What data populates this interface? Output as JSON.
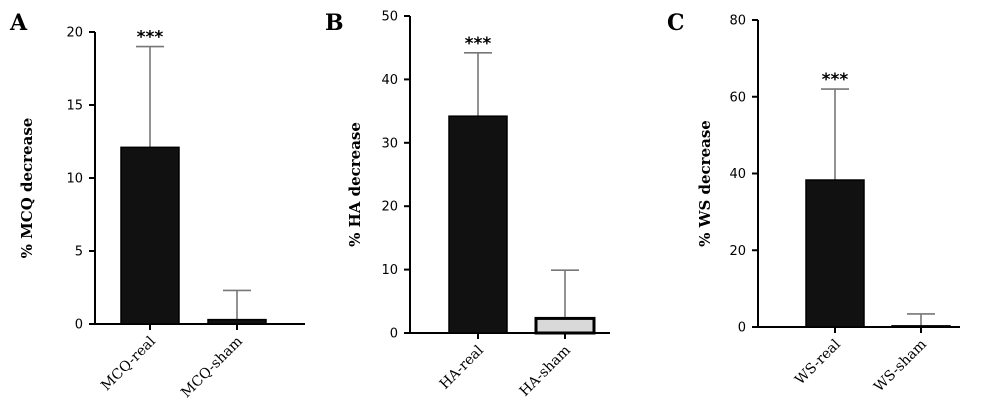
{
  "chart_data": [
    {
      "type": "bar",
      "panel_label": "A",
      "ylabel": "% MCQ decrease",
      "categories": [
        "MCQ-real",
        "MCQ-sham"
      ],
      "values": [
        12.1,
        0.3
      ],
      "errors": [
        6.9,
        2.0
      ],
      "yticks": [
        0,
        5,
        10,
        15,
        20
      ],
      "ylim": [
        0,
        20
      ],
      "bar_colors": [
        "#111111",
        "#111111"
      ],
      "annotations": [
        {
          "category": "MCQ-real",
          "text": "***"
        }
      ]
    },
    {
      "type": "bar",
      "panel_label": "B",
      "ylabel": "% HA decrease",
      "categories": [
        "HA-real",
        "HA-sham"
      ],
      "values": [
        34.2,
        2.3
      ],
      "errors": [
        10.0,
        7.6
      ],
      "yticks": [
        0,
        10,
        20,
        30,
        40,
        50
      ],
      "ylim": [
        0,
        50
      ],
      "bar_colors": [
        "#111111",
        "#d9d9d9"
      ],
      "annotations": [
        {
          "category": "HA-real",
          "text": "***"
        }
      ]
    },
    {
      "type": "bar",
      "panel_label": "C",
      "ylabel": "% WS decrease",
      "categories": [
        "WS-real",
        "WS-sham"
      ],
      "values": [
        38.3,
        0.3
      ],
      "errors": [
        23.7,
        3.1
      ],
      "yticks": [
        0,
        20,
        40,
        60,
        80
      ],
      "ylim": [
        0,
        80
      ],
      "bar_colors": [
        "#111111",
        "#111111"
      ],
      "annotations": [
        {
          "category": "WS-real",
          "text": "***"
        }
      ]
    }
  ]
}
